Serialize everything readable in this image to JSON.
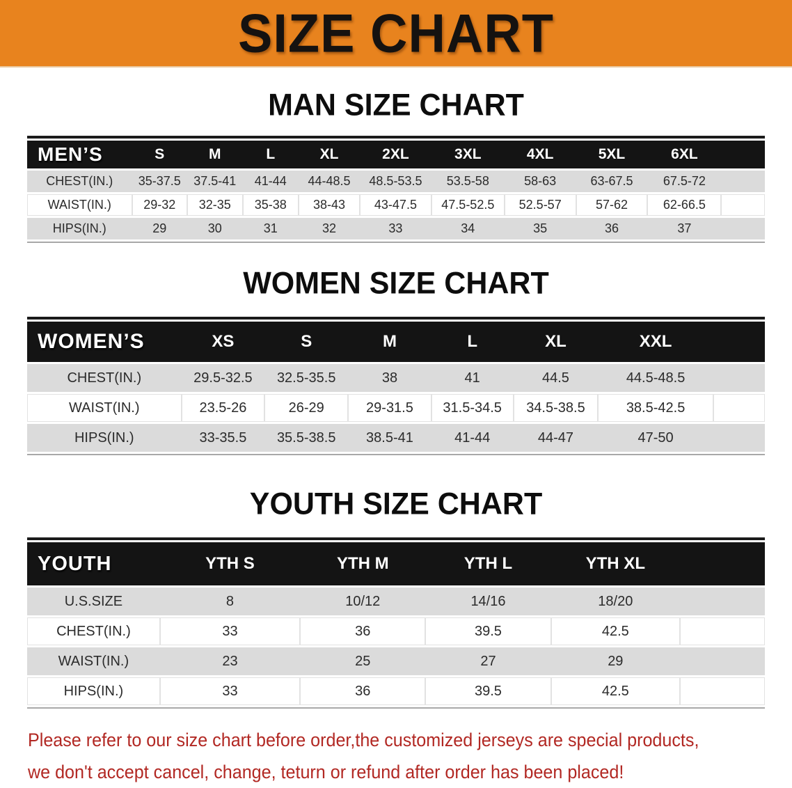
{
  "banner": {
    "title": "SIZE CHART",
    "bg_color": "#E8831E",
    "text_color": "#151210"
  },
  "sections": {
    "men": {
      "heading": "MAN SIZE CHART",
      "table": {
        "corner_label": "MEN’S",
        "columns": [
          "S",
          "M",
          "L",
          "XL",
          "2XL",
          "3XL",
          "4XL",
          "5XL",
          "6XL"
        ],
        "rows": [
          {
            "label": "CHEST(IN.)",
            "values": [
              "35-37.5",
              "37.5-41",
              "41-44",
              "44-48.5",
              "48.5-53.5",
              "53.5-58",
              "58-63",
              "63-67.5",
              "67.5-72"
            ]
          },
          {
            "label": "WAIST(IN.)",
            "values": [
              "29-32",
              "32-35",
              "35-38",
              "38-43",
              "43-47.5",
              "47.5-52.5",
              "52.5-57",
              "57-62",
              "62-66.5"
            ]
          },
          {
            "label": "HIPS(IN.)",
            "values": [
              "29",
              "30",
              "31",
              "32",
              "33",
              "34",
              "35",
              "36",
              "37"
            ]
          }
        ]
      }
    },
    "women": {
      "heading": "WOMEN SIZE CHART",
      "table": {
        "corner_label": "WOMEN’S",
        "columns": [
          "XS",
          "S",
          "M",
          "L",
          "XL",
          "XXL"
        ],
        "rows": [
          {
            "label": "CHEST(IN.)",
            "values": [
              "29.5-32.5",
              "32.5-35.5",
              "38",
              "41",
              "44.5",
              "44.5-48.5"
            ]
          },
          {
            "label": "WAIST(IN.)",
            "values": [
              "23.5-26",
              "26-29",
              "29-31.5",
              "31.5-34.5",
              "34.5-38.5",
              "38.5-42.5"
            ]
          },
          {
            "label": "HIPS(IN.)",
            "values": [
              "33-35.5",
              "35.5-38.5",
              "38.5-41",
              "41-44",
              "44-47",
              "47-50"
            ]
          }
        ]
      }
    },
    "youth": {
      "heading": "YOUTH SIZE CHART",
      "table": {
        "corner_label": "YOUTH",
        "columns": [
          "YTH S",
          "YTH M",
          "YTH L",
          "YTH XL"
        ],
        "rows": [
          {
            "label": "U.S.SIZE",
            "values": [
              "8",
              "10/12",
              "14/16",
              "18/20"
            ]
          },
          {
            "label": "CHEST(IN.)",
            "values": [
              "33",
              "36",
              "39.5",
              "42.5"
            ]
          },
          {
            "label": "WAIST(IN.)",
            "values": [
              "23",
              "25",
              "27",
              "29"
            ]
          },
          {
            "label": "HIPS(IN.)",
            "values": [
              "33",
              "36",
              "39.5",
              "42.5"
            ]
          }
        ]
      }
    }
  },
  "disclaimer": {
    "line1": "Please refer to our size chart before order,the customized jerseys are special products,",
    "line2": "we don't accept cancel, change, teturn or refund after order has been placed!",
    "text_color": "#B22823"
  },
  "chart_data": [
    {
      "type": "table",
      "title": "MAN SIZE CHART",
      "columns": [
        "MEN’S",
        "S",
        "M",
        "L",
        "XL",
        "2XL",
        "3XL",
        "4XL",
        "5XL",
        "6XL"
      ],
      "rows": [
        [
          "CHEST(IN.)",
          "35-37.5",
          "37.5-41",
          "41-44",
          "44-48.5",
          "48.5-53.5",
          "53.5-58",
          "58-63",
          "63-67.5",
          "67.5-72"
        ],
        [
          "WAIST(IN.)",
          "29-32",
          "32-35",
          "35-38",
          "38-43",
          "43-47.5",
          "47.5-52.5",
          "52.5-57",
          "57-62",
          "62-66.5"
        ],
        [
          "HIPS(IN.)",
          "29",
          "30",
          "31",
          "32",
          "33",
          "34",
          "35",
          "36",
          "37"
        ]
      ]
    },
    {
      "type": "table",
      "title": "WOMEN SIZE CHART",
      "columns": [
        "WOMEN’S",
        "XS",
        "S",
        "M",
        "L",
        "XL",
        "XXL"
      ],
      "rows": [
        [
          "CHEST(IN.)",
          "29.5-32.5",
          "32.5-35.5",
          "38",
          "41",
          "44.5",
          "44.5-48.5"
        ],
        [
          "WAIST(IN.)",
          "23.5-26",
          "26-29",
          "29-31.5",
          "31.5-34.5",
          "34.5-38.5",
          "38.5-42.5"
        ],
        [
          "HIPS(IN.)",
          "33-35.5",
          "35.5-38.5",
          "38.5-41",
          "41-44",
          "44-47",
          "47-50"
        ]
      ]
    },
    {
      "type": "table",
      "title": "YOUTH SIZE CHART",
      "columns": [
        "YOUTH",
        "YTH S",
        "YTH M",
        "YTH L",
        "YTH XL"
      ],
      "rows": [
        [
          "U.S.SIZE",
          "8",
          "10/12",
          "14/16",
          "18/20"
        ],
        [
          "CHEST(IN.)",
          "33",
          "36",
          "39.5",
          "42.5"
        ],
        [
          "WAIST(IN.)",
          "23",
          "25",
          "27",
          "29"
        ],
        [
          "HIPS(IN.)",
          "33",
          "36",
          "39.5",
          "42.5"
        ]
      ]
    }
  ]
}
